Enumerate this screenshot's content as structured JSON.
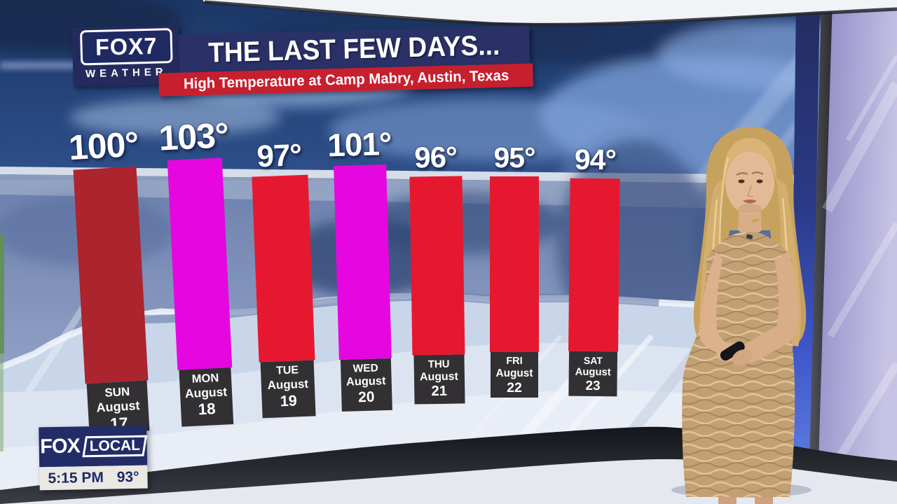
{
  "header": {
    "logo_line1": "FOX7",
    "logo_line2": "WEATHER",
    "title": "THE LAST FEW DAYS...",
    "subtitle": "High Temperature at Camp Mabry, Austin, Texas"
  },
  "chart_data": {
    "type": "bar",
    "title": "THE LAST FEW DAYS...",
    "subtitle": "High Temperature at Camp Mabry, Austin, Texas",
    "unit": "°F",
    "ylim": [
      90,
      105
    ],
    "grid": false,
    "legend": null,
    "categories": [
      "SUN August 17",
      "MON August 18",
      "TUE August 19",
      "WED August 20",
      "THU August 21",
      "FRI August 22",
      "SAT August 23"
    ],
    "values": [
      100,
      103,
      97,
      101,
      96,
      95,
      94
    ],
    "days": [
      {
        "day": "SUN",
        "month": "August",
        "date": "17",
        "temp": 100,
        "temp_label": "100°",
        "color": "#ab242e"
      },
      {
        "day": "MON",
        "month": "August",
        "date": "18",
        "temp": 103,
        "temp_label": "103°",
        "color": "#e607e0"
      },
      {
        "day": "TUE",
        "month": "August",
        "date": "19",
        "temp": 97,
        "temp_label": "97°",
        "color": "#e6182f"
      },
      {
        "day": "WED",
        "month": "August",
        "date": "20",
        "temp": 101,
        "temp_label": "101°",
        "color": "#e607e0"
      },
      {
        "day": "THU",
        "month": "August",
        "date": "21",
        "temp": 96,
        "temp_label": "96°",
        "color": "#e6182f"
      },
      {
        "day": "FRI",
        "month": "August",
        "date": "22",
        "temp": 95,
        "temp_label": "95°",
        "color": "#e6182f"
      },
      {
        "day": "SAT",
        "month": "August",
        "date": "23",
        "temp": 94,
        "temp_label": "94°",
        "color": "#e6182f"
      }
    ]
  },
  "bug": {
    "brand": "FOX",
    "brand2": "LOCAL",
    "time": "5:15 PM",
    "temperature": "93°"
  },
  "colors": {
    "bar_red": "#e6182f",
    "bar_dark_red": "#ab242e",
    "bar_magenta": "#e607e0",
    "banner_navy": "#2a3166",
    "banner_red": "#c6202f",
    "day_label_box": "#2c292c",
    "bug_navy": "#222d68"
  }
}
